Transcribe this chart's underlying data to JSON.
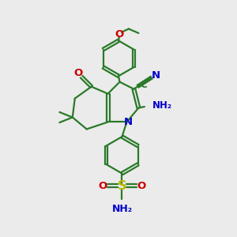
{
  "bg_color": "#ebebeb",
  "gc": "#2a7a2a",
  "red": "#cc0000",
  "blue": "#0000cc",
  "yellow_s": "#b8b800",
  "lw": 1.6,
  "fs": 8.5,
  "xlim": [
    0,
    10
  ],
  "ylim": [
    0,
    10
  ]
}
